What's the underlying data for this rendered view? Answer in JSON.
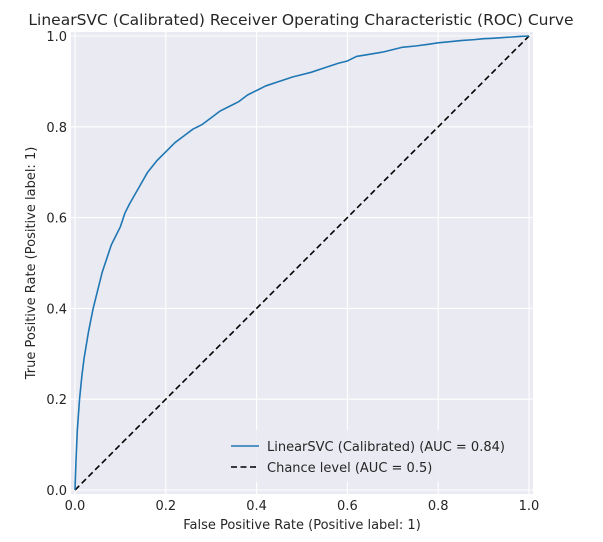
{
  "chart_data": {
    "type": "line",
    "title": "LinearSVC (Calibrated) Receiver Operating Characteristic (ROC) Curve",
    "xlabel": "False Positive Rate (Positive label: 1)",
    "ylabel": "True Positive Rate (Positive label: 1)",
    "xlim": [
      0,
      1
    ],
    "ylim": [
      0,
      1
    ],
    "xticks": [
      "0.0",
      "0.2",
      "0.4",
      "0.6",
      "0.8",
      "1.0"
    ],
    "yticks": [
      "0.0",
      "0.2",
      "0.4",
      "0.6",
      "0.8",
      "1.0"
    ],
    "grid": true,
    "legend_position": "bottom-right",
    "colors": {
      "plot_background": "#eaeaf2",
      "grid": "#ffffff",
      "roc": "#1f77b4",
      "chance": "#000000"
    },
    "series": [
      {
        "name": "LinearSVC (Calibrated) (AUC = 0.84)",
        "style": "solid",
        "x": [
          0.0,
          0.002,
          0.005,
          0.01,
          0.015,
          0.02,
          0.03,
          0.04,
          0.05,
          0.06,
          0.07,
          0.08,
          0.09,
          0.1,
          0.11,
          0.12,
          0.14,
          0.16,
          0.18,
          0.2,
          0.22,
          0.24,
          0.26,
          0.28,
          0.3,
          0.32,
          0.34,
          0.36,
          0.38,
          0.4,
          0.42,
          0.45,
          0.48,
          0.5,
          0.52,
          0.55,
          0.58,
          0.6,
          0.62,
          0.65,
          0.68,
          0.7,
          0.72,
          0.75,
          0.78,
          0.8,
          0.82,
          0.85,
          0.88,
          0.9,
          0.92,
          0.95,
          0.98,
          1.0
        ],
        "y": [
          0.0,
          0.06,
          0.13,
          0.2,
          0.25,
          0.29,
          0.35,
          0.4,
          0.44,
          0.48,
          0.51,
          0.54,
          0.56,
          0.58,
          0.61,
          0.63,
          0.665,
          0.7,
          0.725,
          0.745,
          0.765,
          0.78,
          0.795,
          0.805,
          0.82,
          0.835,
          0.845,
          0.855,
          0.87,
          0.88,
          0.89,
          0.9,
          0.91,
          0.915,
          0.92,
          0.93,
          0.94,
          0.945,
          0.955,
          0.96,
          0.965,
          0.97,
          0.975,
          0.978,
          0.982,
          0.985,
          0.987,
          0.99,
          0.992,
          0.994,
          0.995,
          0.997,
          0.999,
          1.0
        ]
      },
      {
        "name": "Chance level (AUC = 0.5)",
        "style": "dashed",
        "x": [
          0,
          1
        ],
        "y": [
          0,
          1
        ]
      }
    ]
  }
}
